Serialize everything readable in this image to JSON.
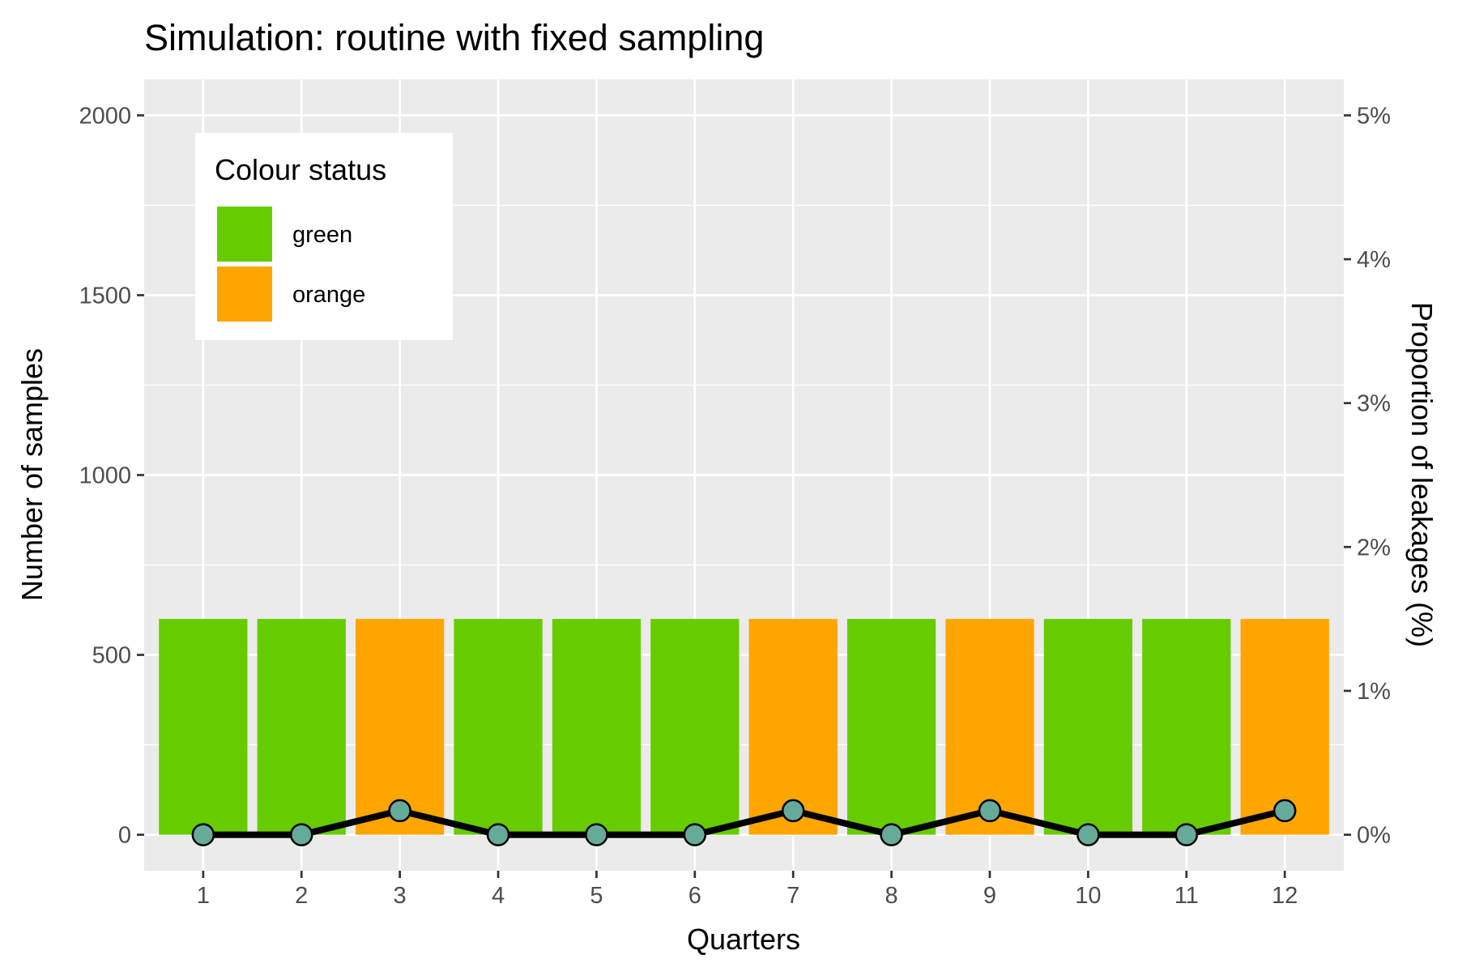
{
  "chart_data": {
    "type": "bar",
    "title": "Simulation: routine with fixed sampling",
    "xlabel": "Quarters",
    "ylabel": "Number of samples",
    "y2label": "Proportion of leakages (%)",
    "categories": [
      "1",
      "2",
      "3",
      "4",
      "5",
      "6",
      "7",
      "8",
      "9",
      "10",
      "11",
      "12"
    ],
    "ylim": [
      -100,
      2100
    ],
    "y_ticks": [
      0,
      500,
      1000,
      1500,
      2000
    ],
    "y_tick_labels": [
      "0",
      "500",
      "1000",
      "1500",
      "2000"
    ],
    "y2lim": [
      -0.0025,
      0.0525
    ],
    "y2_ticks": [
      0,
      0.01,
      0.02,
      0.03,
      0.04,
      0.05
    ],
    "y2_tick_labels": [
      "0%",
      "1%",
      "2%",
      "3%",
      "4%",
      "5%"
    ],
    "grid": true,
    "bars": {
      "values": [
        600,
        600,
        600,
        600,
        600,
        600,
        600,
        600,
        600,
        600,
        600,
        600
      ],
      "status": [
        "green",
        "green",
        "orange",
        "green",
        "green",
        "green",
        "orange",
        "green",
        "orange",
        "green",
        "green",
        "orange"
      ]
    },
    "line": {
      "axis": "secondary",
      "values": [
        0,
        0,
        0.00167,
        0,
        0,
        0,
        0.00167,
        0,
        0.00167,
        0,
        0,
        0.00167
      ],
      "line_color": "#000000",
      "point_fill": "#66ab9a"
    },
    "legend": {
      "title": "Colour status",
      "placement": "top-left",
      "items": [
        {
          "label": "green",
          "color": "#66cc00"
        },
        {
          "label": "orange",
          "color": "#ffa500"
        }
      ]
    },
    "colors": {
      "panel_background": "#ebebeb",
      "grid_major": "#ffffff",
      "green": "#66cc00",
      "orange": "#ffa500"
    }
  }
}
